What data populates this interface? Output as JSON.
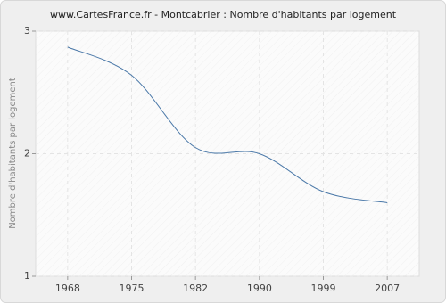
{
  "chart_data": {
    "type": "line",
    "title": "www.CartesFrance.fr - Montcabrier : Nombre d'habitants par logement",
    "y_label": "Nombre d'habitants par logement",
    "categories": [
      "1968",
      "1975",
      "1982",
      "1990",
      "1999",
      "2007"
    ],
    "series": [
      {
        "name": "Nombre d'habitants par logement",
        "color": "#4a78a8",
        "values": [
          2.87,
          2.64,
          2.05,
          2.0,
          1.69,
          1.6
        ]
      }
    ],
    "ylim": [
      1,
      3
    ],
    "yticks": [
      1,
      2,
      3
    ],
    "grid": true
  }
}
